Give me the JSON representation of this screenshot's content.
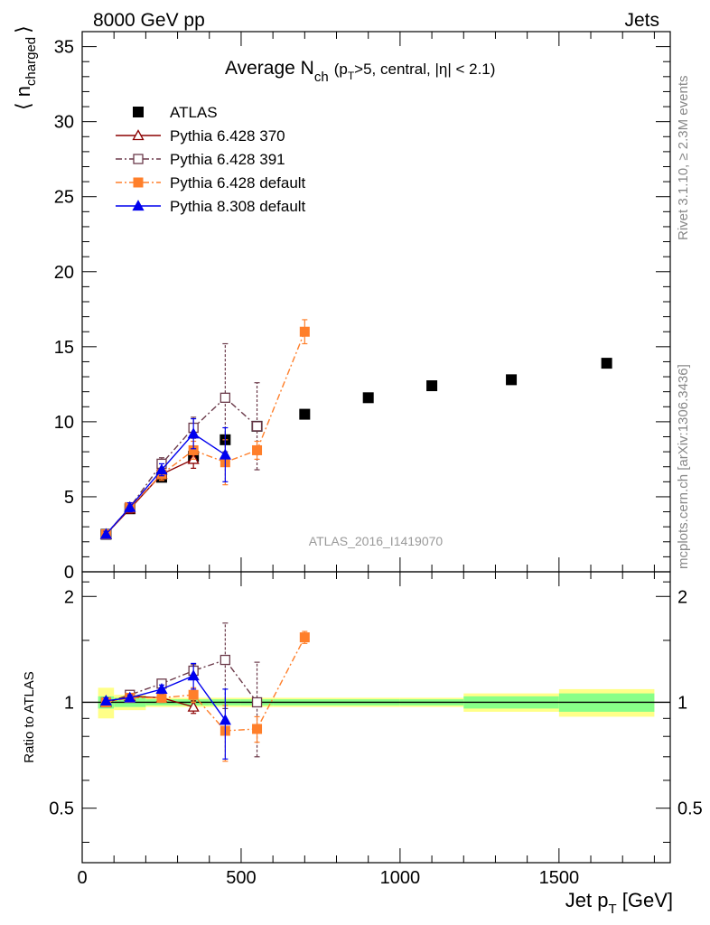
{
  "header": {
    "left": "8000 GeV pp",
    "right": "Jets"
  },
  "side_labels": {
    "top": "Rivet 3.1.10, ≥ 2.3M events",
    "bottom": "mcplots.cern.ch [arXiv:1306.3436]"
  },
  "analysis_id": "ATLAS_2016_I1419070",
  "chart_data": [
    {
      "type": "line",
      "title": "Average N_ch (p_T>5, central, |η| < 2.1)",
      "title_parts": {
        "main": "Average N",
        "sub": "ch",
        "rest_open": "(p",
        "rest_sub": "T",
        "rest_close": ">5, central, |η| < 2.1)"
      },
      "ylabel": {
        "main": "⟨ n",
        "sub": "charged",
        "close": "⟩"
      },
      "xlim": [
        0,
        1850
      ],
      "ylim": [
        0,
        36
      ],
      "y_ticks": [
        "0",
        "5",
        "10",
        "15",
        "20",
        "25",
        "30",
        "35"
      ],
      "legend_position": "top-left",
      "series": [
        {
          "name": "ATLAS",
          "color": "#000000",
          "style": "points",
          "marker": "square",
          "x": [
            75,
            150,
            250,
            350,
            450,
            550,
            700,
            900,
            1100,
            1350,
            1650
          ],
          "y": [
            2.5,
            4.2,
            6.3,
            7.7,
            8.8,
            9.7,
            10.5,
            11.6,
            12.4,
            12.8,
            13.9
          ]
        },
        {
          "name": "Pythia 6.428 370",
          "color": "#8b0000",
          "style": "solid",
          "marker": "open-triangle",
          "x": [
            75,
            150,
            250,
            350
          ],
          "y": [
            2.5,
            4.2,
            6.5,
            7.5
          ],
          "err": [
            0.2,
            0.3,
            0.4,
            0.6
          ]
        },
        {
          "name": "Pythia 6.428 391",
          "color": "#6b3a4a",
          "style": "dash-dot",
          "marker": "open-square",
          "x": [
            75,
            150,
            250,
            350,
            450,
            550
          ],
          "y": [
            2.5,
            4.3,
            7.2,
            9.6,
            11.6,
            9.7
          ],
          "err": [
            0.2,
            0.3,
            0.4,
            0.7,
            3.6,
            2.9
          ]
        },
        {
          "name": "Pythia 6.428 default",
          "color": "#ff7f2a",
          "style": "dash-dot",
          "marker": "filled-square",
          "x": [
            75,
            150,
            250,
            350,
            450,
            550,
            700
          ],
          "y": [
            2.5,
            4.3,
            6.5,
            8.1,
            7.3,
            8.1,
            16.0
          ],
          "err": [
            0.2,
            0.3,
            0.4,
            0.6,
            1.5,
            0.6,
            0.8
          ]
        },
        {
          "name": "Pythia 8.308 default",
          "color": "#0000ee",
          "style": "solid",
          "marker": "filled-triangle",
          "x": [
            75,
            150,
            250,
            350,
            450
          ],
          "y": [
            2.5,
            4.3,
            6.8,
            9.2,
            7.8
          ],
          "err": [
            0.2,
            0.3,
            0.4,
            1.0,
            1.8
          ]
        }
      ]
    },
    {
      "type": "line",
      "ylabel": "Ratio to ATLAS",
      "xlabel": {
        "main": "Jet p",
        "sub": "T",
        "rest": " [GeV]"
      },
      "xlim": [
        0,
        1850
      ],
      "ylim": [
        0.35,
        2.35
      ],
      "y_ticks": [
        "0.5",
        "1",
        "2"
      ],
      "x_ticks": [
        "0",
        "500",
        "1000",
        "1500"
      ],
      "ref_bins": {
        "edges": [
          50,
          100,
          200,
          300,
          400,
          500,
          600,
          800,
          1000,
          1200,
          1500,
          1800
        ],
        "stat_sys_inner": [
          0.04,
          0.03,
          0.02,
          0.02,
          0.02,
          0.02,
          0.02,
          0.02,
          0.02,
          0.04,
          0.06
        ],
        "stat_sys_outer": [
          0.1,
          0.05,
          0.03,
          0.03,
          0.03,
          0.03,
          0.03,
          0.03,
          0.03,
          0.06,
          0.09
        ]
      },
      "series": [
        {
          "name": "Pythia 6.428 370",
          "color": "#8b0000",
          "style": "solid",
          "marker": "open-triangle",
          "x": [
            75,
            150,
            250,
            350
          ],
          "y": [
            1.0,
            1.04,
            1.03,
            0.97
          ],
          "err": [
            0.02,
            0.02,
            0.03,
            0.04
          ]
        },
        {
          "name": "Pythia 6.428 391",
          "color": "#6b3a4a",
          "style": "dash-dot",
          "marker": "open-square",
          "x": [
            75,
            150,
            250,
            350,
            450,
            550
          ],
          "y": [
            1.0,
            1.05,
            1.13,
            1.23,
            1.32,
            1.0
          ],
          "err": [
            0.02,
            0.02,
            0.03,
            0.05,
            0.36,
            0.3
          ]
        },
        {
          "name": "Pythia 6.428 default",
          "color": "#ff7f2a",
          "style": "dash-dot",
          "marker": "filled-square",
          "x": [
            75,
            150,
            250,
            350,
            450,
            550,
            700
          ],
          "y": [
            1.0,
            1.03,
            1.03,
            1.05,
            0.83,
            0.84,
            1.53
          ],
          "err": [
            0.02,
            0.02,
            0.03,
            0.05,
            0.15,
            0.07,
            0.06
          ]
        },
        {
          "name": "Pythia 8.308 default",
          "color": "#0000ee",
          "style": "solid",
          "marker": "filled-triangle",
          "x": [
            75,
            150,
            250,
            350,
            450
          ],
          "y": [
            1.01,
            1.03,
            1.09,
            1.19,
            0.89
          ],
          "err": [
            0.02,
            0.02,
            0.03,
            0.1,
            0.2
          ]
        }
      ]
    }
  ]
}
